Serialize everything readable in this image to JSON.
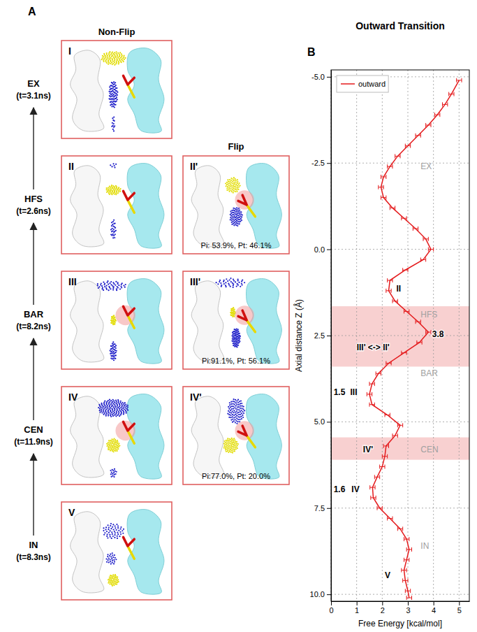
{
  "panel_a": {
    "label": "A",
    "columns": [
      "Non-Flip",
      "Flip"
    ],
    "rows": [
      {
        "state": "EX",
        "time": "(t=3.1ns)",
        "non_flip": "I"
      },
      {
        "state": "HFS",
        "time": "(t=2.6ns)",
        "non_flip": "II",
        "flip": "II'",
        "flip_stats": "Pi: 53.9%, Pt: 46.1%"
      },
      {
        "state": "BAR",
        "time": "(t=8.2ns)",
        "non_flip": "III",
        "flip": "III'",
        "flip_stats": "Pi:91.1%, Pt: 56.1%"
      },
      {
        "state": "CEN",
        "time": "(t=11.9ns)",
        "non_flip": "IV",
        "flip": "IV'",
        "flip_stats": "Pi:77.0%, Pt: 20.0%"
      },
      {
        "state": "IN",
        "time": "(t=8.3ns)",
        "non_flip": "V"
      }
    ]
  },
  "chart_data": {
    "type": "line",
    "label": "B",
    "title": "Outward Transition",
    "x_label": "Free Energy [kcal/mol]",
    "y_label": "Axial distance Z (Å)",
    "xlim": [
      0,
      5.4
    ],
    "xticks": [
      0,
      1,
      2,
      3,
      4,
      5
    ],
    "ylim": [
      10.2,
      -5.2
    ],
    "yticks": [
      {
        "value": -5,
        "label": "-5.0"
      },
      -2.5,
      {
        "value": 0,
        "label": "0.0"
      },
      2.5,
      {
        "value": 5,
        "label": "5.0"
      },
      7.5,
      {
        "value": 10,
        "label": "10.0"
      }
    ],
    "grid": true,
    "legend": "upper left",
    "series": [
      {
        "name": "outward",
        "color": "#e41a1c",
        "line_style": "solid",
        "y": [
          -4.9,
          -4.5,
          -4.2,
          -3.9,
          -3.6,
          -3.3,
          -3.0,
          -2.7,
          -2.4,
          -2.1,
          -1.8,
          -1.5,
          -1.2,
          -0.9,
          -0.6,
          -0.3,
          0.0,
          0.3,
          0.6,
          0.9,
          1.2,
          1.5,
          1.8,
          2.1,
          2.4,
          2.7,
          3.0,
          3.3,
          3.6,
          3.9,
          4.2,
          4.5,
          4.8,
          5.1,
          5.4,
          5.7,
          6.0,
          6.3,
          6.6,
          6.9,
          7.2,
          7.5,
          7.8,
          8.1,
          8.4,
          8.7,
          9.0,
          9.3,
          9.6,
          9.9,
          10.1
        ],
        "values": [
          5.0,
          4.7,
          4.45,
          4.15,
          3.8,
          3.4,
          3.0,
          2.6,
          2.3,
          2.05,
          1.95,
          2.05,
          2.4,
          2.85,
          3.3,
          3.7,
          3.9,
          3.6,
          2.9,
          2.3,
          2.25,
          2.5,
          2.95,
          3.4,
          3.8,
          3.45,
          2.85,
          2.25,
          1.85,
          1.6,
          1.5,
          1.6,
          2.2,
          2.7,
          2.5,
          2.15,
          2.1,
          2.0,
          1.8,
          1.62,
          1.65,
          1.9,
          2.3,
          2.7,
          2.95,
          3.05,
          2.95,
          2.85,
          2.9,
          3.0,
          3.05
        ],
        "errors": [
          0.1,
          0.1,
          0.1,
          0.1,
          0.1,
          0.1,
          0.1,
          0.1,
          0.1,
          0.1,
          0.1,
          0.1,
          0.1,
          0.1,
          0.1,
          0.1,
          0.1,
          0.1,
          0.1,
          0.1,
          0.1,
          0.1,
          0.1,
          0.1,
          0.1,
          0.1,
          0.1,
          0.1,
          0.1,
          0.1,
          0.1,
          0.1,
          0.1,
          0.1,
          0.1,
          0.1,
          0.1,
          0.1,
          0.1,
          0.1,
          0.1,
          0.1,
          0.1,
          0.1,
          0.1,
          0.1,
          0.1,
          0.1,
          0.1,
          0.1,
          0.1
        ]
      }
    ],
    "shaded_z_ranges": [
      [
        1.65,
        3.4
      ],
      [
        5.45,
        6.1
      ]
    ],
    "region_labels": [
      {
        "text": "EX",
        "x": 3.5,
        "y": -2.4
      },
      {
        "text": "HFS",
        "x": 3.5,
        "y": 1.9
      },
      {
        "text": "BAR",
        "x": 3.5,
        "y": 3.6
      },
      {
        "text": "CEN",
        "x": 3.5,
        "y": 5.8
      },
      {
        "text": "IN",
        "x": 3.5,
        "y": 8.6
      }
    ],
    "annotations": [
      {
        "text": "II",
        "x": 2.55,
        "y": 1.15
      },
      {
        "text": "3.8",
        "x": 3.95,
        "y": 2.45
      },
      {
        "text": "III' <-> II'",
        "x": 1.0,
        "y": 2.85
      },
      {
        "text": "1.5",
        "x": 0.1,
        "y": 4.15
      },
      {
        "text": "III",
        "x": 0.75,
        "y": 4.15
      },
      {
        "text": "IV'",
        "x": 1.25,
        "y": 5.8
      },
      {
        "text": "1.6",
        "x": 0.1,
        "y": 6.95
      },
      {
        "text": "IV",
        "x": 0.8,
        "y": 6.95
      },
      {
        "text": "V",
        "x": 2.1,
        "y": 9.45
      }
    ]
  }
}
